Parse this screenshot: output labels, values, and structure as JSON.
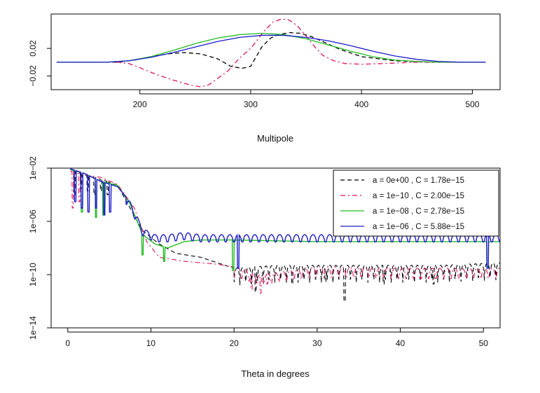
{
  "chart_data": [
    {
      "type": "line",
      "title": "",
      "xlabel": "Multipole",
      "ylabel": "",
      "xlim": [
        120,
        525
      ],
      "ylim": [
        -0.04,
        0.07
      ],
      "xticks": [
        200,
        300,
        400,
        500
      ],
      "yticks": [
        -0.02,
        0.02
      ],
      "ytick_labels": [
        "−0.02",
        "0.02"
      ],
      "grid": false,
      "series": [
        {
          "color": "#000000",
          "dash": "6,4",
          "x": [
            125,
            180,
            195,
            210,
            225,
            240,
            255,
            270,
            282,
            292,
            300,
            305,
            310,
            318,
            325,
            335,
            345,
            355,
            365,
            380,
            400,
            430,
            460,
            512
          ],
          "y": [
            0.0,
            0.0,
            0.003,
            0.008,
            0.012,
            0.014,
            0.012,
            0.005,
            -0.006,
            -0.009,
            -0.006,
            0.008,
            0.022,
            0.035,
            0.04,
            0.043,
            0.042,
            0.037,
            0.03,
            0.019,
            0.008,
            0.002,
            0.0,
            0.0
          ]
        },
        {
          "color": "#e0115f",
          "dash": "7,4,2,4",
          "x": [
            125,
            180,
            190,
            200,
            215,
            230,
            245,
            255,
            262,
            270,
            280,
            290,
            300,
            305,
            312,
            320,
            328,
            335,
            342,
            350,
            358,
            365,
            375,
            385,
            400,
            420,
            450,
            512
          ],
          "y": [
            0.0,
            0.0,
            -0.002,
            -0.008,
            -0.018,
            -0.026,
            -0.033,
            -0.036,
            -0.033,
            -0.024,
            -0.012,
            0.006,
            0.02,
            0.03,
            0.045,
            0.058,
            0.063,
            0.061,
            0.053,
            0.038,
            0.022,
            0.01,
            0.002,
            -0.002,
            -0.003,
            -0.002,
            0.0,
            0.0
          ]
        },
        {
          "color": "#22bb22",
          "dash": "",
          "x": [
            125,
            170,
            190,
            210,
            230,
            250,
            270,
            290,
            310,
            330,
            350,
            370,
            390,
            410,
            430,
            450,
            470,
            512
          ],
          "y": [
            0.0,
            0.0,
            0.002,
            0.008,
            0.017,
            0.027,
            0.035,
            0.04,
            0.042,
            0.04,
            0.034,
            0.025,
            0.016,
            0.008,
            0.003,
            0.001,
            0.0,
            0.0
          ]
        },
        {
          "color": "#1a1acc",
          "dash": "",
          "x": [
            125,
            170,
            190,
            210,
            230,
            250,
            270,
            290,
            310,
            330,
            350,
            370,
            390,
            410,
            430,
            450,
            470,
            490,
            512
          ],
          "y": [
            0.0,
            0.0,
            0.002,
            0.007,
            0.014,
            0.022,
            0.03,
            0.036,
            0.039,
            0.039,
            0.036,
            0.031,
            0.024,
            0.016,
            0.009,
            0.004,
            0.001,
            0.0,
            0.0
          ]
        }
      ]
    },
    {
      "type": "line",
      "title": "",
      "xlabel": "Theta in degrees",
      "ylabel": "",
      "xlim": [
        -2,
        52
      ],
      "ylog": true,
      "ylim": [
        1e-14,
        0.01
      ],
      "xticks": [
        0,
        10,
        20,
        30,
        40,
        50
      ],
      "yticks": [
        1e-14,
        1e-10,
        1e-06,
        0.01
      ],
      "ytick_labels": [
        "1e−14",
        "1e−10",
        "1e−06",
        "1e−02"
      ],
      "grid": false,
      "legend_position": "top-right",
      "series": [
        {
          "name": "a = 0e+00 , C = 1.78e−15",
          "color": "#000000",
          "dash": "6,4",
          "base": [
            [
              0.3,
              0.008
            ],
            [
              2,
              0.003
            ],
            [
              4,
              0.0015
            ],
            [
              6,
              0.0005
            ],
            [
              7.5,
              1e-05
            ],
            [
              9,
              2e-07
            ],
            [
              11,
              2e-08
            ],
            [
              13,
              4e-09
            ],
            [
              16,
              2e-09
            ],
            [
              20,
              3e-10
            ],
            [
              25,
              5e-10
            ],
            [
              35,
              5e-10
            ],
            [
              45,
              5e-10
            ],
            [
              52,
              8e-10
            ]
          ],
          "spikes": [
            [
              0.8,
              0.0001
            ],
            [
              1.6,
              0.0003
            ],
            [
              2.4,
              0.0002
            ],
            [
              3.2,
              0.0001
            ],
            [
              4.0,
              0.0002
            ],
            [
              4.8,
              0.0001
            ],
            [
              22.6,
              5e-12
            ],
            [
              27,
              2e-11
            ],
            [
              31,
              3e-11
            ],
            [
              33.3,
              1e-12
            ],
            [
              38,
              2e-11
            ],
            [
              44,
              2e-11
            ]
          ],
          "ripple_from": 20,
          "ripple_period": 0.7,
          "ripple_depth": 20
        },
        {
          "name": "a = 1e−10 , C = 2.00e−15",
          "color": "#e0115f",
          "dash": "7,4,2,4",
          "base": [
            [
              0.3,
              0.006
            ],
            [
              2,
              0.003
            ],
            [
              4,
              0.002
            ],
            [
              6,
              0.0006
            ],
            [
              8,
              1e-05
            ],
            [
              9.5,
              3e-08
            ],
            [
              11,
              2e-09
            ],
            [
              14,
              1e-09
            ],
            [
              18,
              6e-10
            ],
            [
              21,
              3e-10
            ],
            [
              23,
              1e-10
            ],
            [
              30,
              4e-10
            ],
            [
              40,
              3e-10
            ],
            [
              52,
              3e-10
            ]
          ],
          "spikes": [
            [
              0.6,
              1e-05
            ],
            [
              1.4,
              3e-05
            ],
            [
              22.1,
              8e-12
            ],
            [
              23.2,
              4e-12
            ],
            [
              24,
              2e-11
            ]
          ],
          "ripple_from": 20,
          "ripple_period": 0.9,
          "ripple_depth": 6
        },
        {
          "name": "a = 1e−08 , C = 2.78e−15",
          "color": "#22bb22",
          "dash": "",
          "base": [
            [
              0.3,
              0.008
            ],
            [
              2,
              0.004
            ],
            [
              4,
              0.001
            ],
            [
              6,
              0.0005
            ],
            [
              7.5,
              2e-05
            ],
            [
              9,
              1e-07
            ],
            [
              10.5,
              2e-08
            ],
            [
              12,
              1e-08
            ],
            [
              14,
              3e-08
            ],
            [
              16,
              4e-08
            ],
            [
              20,
              4e-08
            ],
            [
              30,
              3e-08
            ],
            [
              40,
              3e-08
            ],
            [
              52,
              3e-08
            ]
          ],
          "spikes": [
            [
              1.7,
              5e-06
            ],
            [
              3.4,
              2e-06
            ],
            [
              4.3,
              3e-06
            ],
            [
              9.0,
              3e-09
            ],
            [
              11.6,
              1e-09
            ],
            [
              19.9,
              2e-10
            ],
            [
              50.5,
              4e-10
            ]
          ],
          "ripple_from": 0,
          "ripple_period": 0,
          "ripple_depth": 1
        },
        {
          "name": "a = 1e−06 , C = 5.88e−15",
          "color": "#1a1acc",
          "dash": "",
          "base": [
            [
              0.3,
              0.009
            ],
            [
              2,
              0.004
            ],
            [
              4,
              0.001
            ],
            [
              6,
              0.0004
            ],
            [
              7.5,
              3e-05
            ],
            [
              9,
              3e-07
            ],
            [
              10.5,
              1e-07
            ],
            [
              12,
              1e-07
            ],
            [
              14,
              1.5e-07
            ],
            [
              16,
              1e-07
            ],
            [
              20,
              1e-07
            ],
            [
              30,
              1e-07
            ],
            [
              40,
              1e-07
            ],
            [
              52,
              1e-07
            ]
          ],
          "spikes": [
            [
              0.9,
              3e-05
            ],
            [
              1.7,
              1e-05
            ],
            [
              2.5,
              5e-06
            ],
            [
              3.4,
              1e-05
            ],
            [
              4.4,
              3e-06
            ],
            [
              5.1,
              5e-06
            ],
            [
              20.5,
              3e-10
            ],
            [
              50.5,
              3e-10
            ]
          ],
          "ripple_from": 7,
          "ripple_period": 1.0,
          "ripple_depth": 3.5
        }
      ]
    }
  ]
}
